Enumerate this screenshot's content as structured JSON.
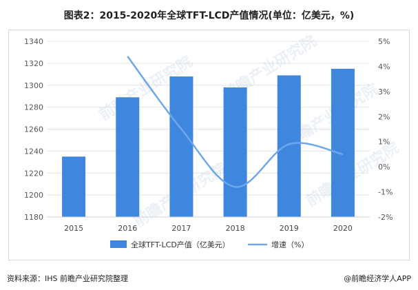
{
  "title": "图表2：2015-2020年全球TFT-LCD产值情况(单位：亿美元，%)",
  "footer": {
    "source": "资料来源：IHS 前瞻产业研究院整理",
    "brand": "@前瞻经济学人APP"
  },
  "colors": {
    "bar": "#3f86df",
    "line": "#6ea8ea",
    "grid": "#e3e3e3",
    "axis_text": "#555555"
  },
  "chart_data": {
    "type": "bar",
    "categories": [
      "2015",
      "2016",
      "2017",
      "2018",
      "2019",
      "2020"
    ],
    "series": [
      {
        "name": "全球TFT-LCD产值（亿美元）",
        "type": "bar",
        "axis": "left",
        "values": [
          1235,
          1289,
          1308,
          1298,
          1309,
          1315
        ]
      },
      {
        "name": "增速（%）",
        "type": "line",
        "axis": "right",
        "values": [
          null,
          4.4,
          1.5,
          -0.8,
          0.9,
          0.5
        ]
      }
    ],
    "ylim_left": [
      1180,
      1340
    ],
    "yticks_left": [
      "1340",
      "1320",
      "1300",
      "1280",
      "1260",
      "1240",
      "1220",
      "1200",
      "1180"
    ],
    "ylim_right": [
      -2,
      5
    ],
    "yticks_right": [
      "5%",
      "4%",
      "3%",
      "2%",
      "1%",
      "0%",
      "-1%",
      "-2%"
    ],
    "legend": [
      "全球TFT-LCD产值（亿美元）",
      "增速（%）"
    ],
    "legend_position": "bottom",
    "grid": true
  }
}
